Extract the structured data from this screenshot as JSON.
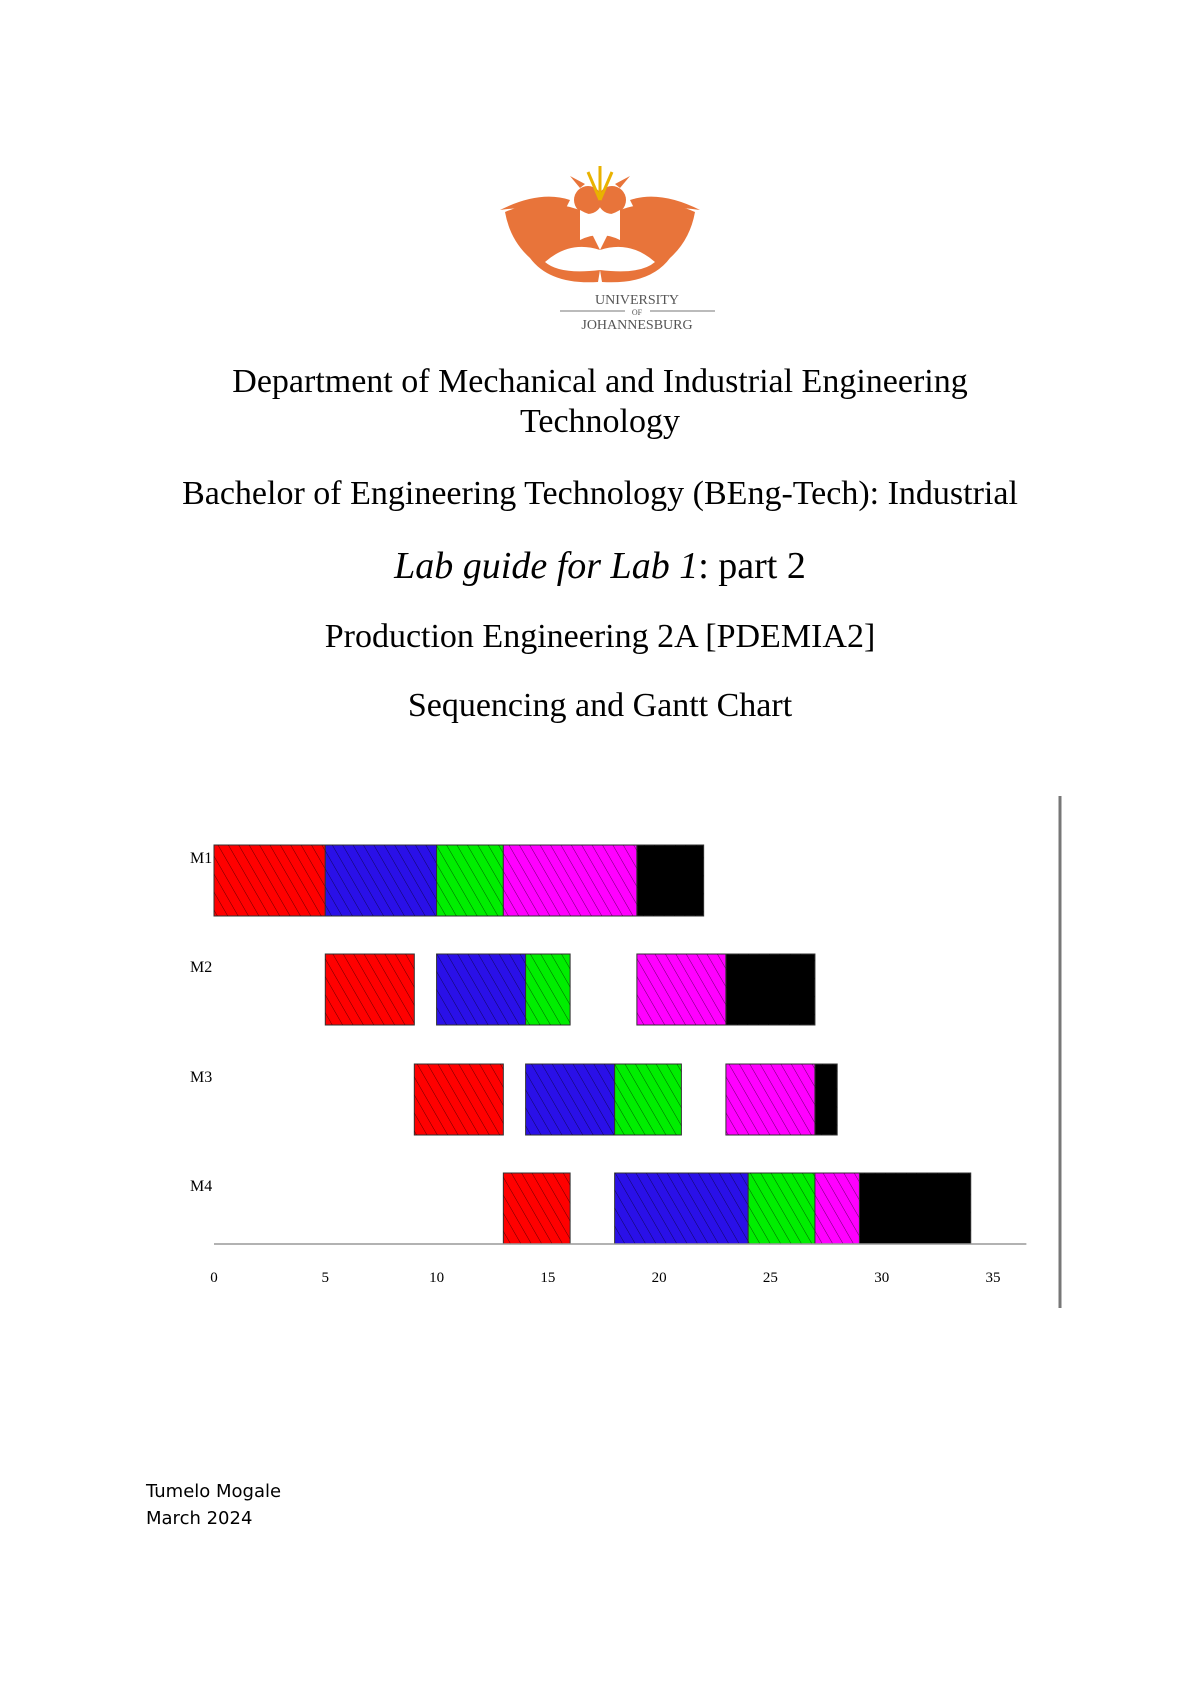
{
  "logo": {
    "line1": "UNIVERSITY",
    "line2": "OF",
    "line3": "JOHANNESBURG"
  },
  "department": "Department of Mechanical and Industrial Engineering Technology",
  "degree": "Bachelor of Engineering Technology (BEng-Tech): Industrial",
  "lab_title": {
    "italic": "Lab guide for Lab 1",
    "rest": ": part 2"
  },
  "course": "Production Engineering 2A [PDEMIA2]",
  "topic": "Sequencing and Gantt Chart",
  "chart_data": {
    "type": "gantt",
    "categories": [
      "M1",
      "M2",
      "M3",
      "M4"
    ],
    "series": [
      {
        "color": "#ff0000",
        "starts": [
          0,
          5,
          9,
          13
        ],
        "ends": [
          5,
          9,
          13,
          16
        ]
      },
      {
        "color": "#2a10e8",
        "starts": [
          5,
          10,
          14,
          18
        ],
        "ends": [
          10,
          14,
          18,
          24
        ]
      },
      {
        "color": "#00ee00",
        "starts": [
          10,
          14,
          18,
          24
        ],
        "ends": [
          13,
          16,
          21,
          27
        ]
      },
      {
        "color": "#ff00ff",
        "starts": [
          13,
          19,
          23,
          27
        ],
        "ends": [
          19,
          23,
          27,
          29
        ]
      },
      {
        "color": "#000000",
        "starts": [
          19,
          23,
          27,
          29
        ],
        "ends": [
          22,
          27,
          28,
          34
        ]
      }
    ],
    "xlim": [
      0,
      36.5
    ],
    "xticks": [
      0,
      5,
      10,
      15,
      20,
      25,
      30,
      35
    ]
  },
  "author": {
    "name": "Tumelo Mogale",
    "date": "March 2024"
  }
}
